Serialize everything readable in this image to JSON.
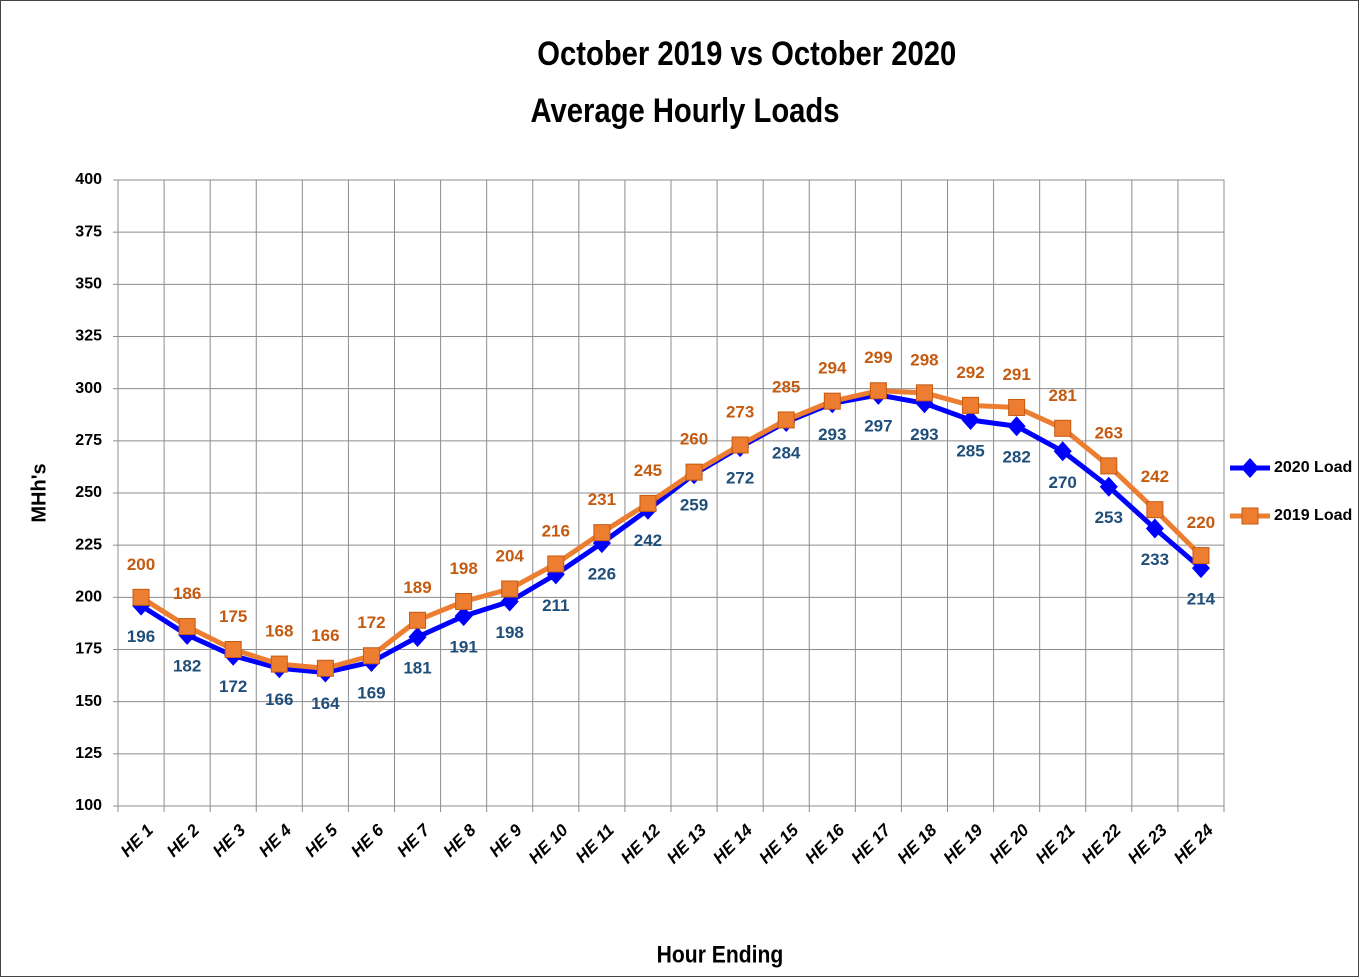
{
  "chart_data": {
    "type": "line",
    "title": [
      "October 2019 vs October 2020",
      "Average Hourly Loads"
    ],
    "x_label": "Hour Ending",
    "y_label": "MHh's",
    "categories": [
      "HE 1",
      "HE 2",
      "HE 3",
      "HE 4",
      "HE 5",
      "HE 6",
      "HE 7",
      "HE 8",
      "HE 9",
      "HE 10",
      "HE 11",
      "HE 12",
      "HE 13",
      "HE 14",
      "HE 15",
      "HE 16",
      "HE 17",
      "HE 18",
      "HE 19",
      "HE 20",
      "HE 21",
      "HE 22",
      "HE 23",
      "HE 24"
    ],
    "series": [
      {
        "name": "2020 Load",
        "color": "#0000ff",
        "marker": "diamond",
        "label_color": "#1f4e79",
        "label_position": "below",
        "values": [
          196,
          182,
          172,
          166,
          164,
          169,
          181,
          191,
          198,
          211,
          226,
          242,
          259,
          272,
          284,
          293,
          297,
          293,
          285,
          282,
          270,
          253,
          233,
          214
        ]
      },
      {
        "name": "2019 Load",
        "color": "#ed7d31",
        "marker": "square",
        "label_color": "#c55a11",
        "label_position": "above",
        "values": [
          200,
          186,
          175,
          168,
          166,
          172,
          189,
          198,
          204,
          216,
          231,
          245,
          260,
          273,
          285,
          294,
          299,
          298,
          292,
          291,
          281,
          263,
          242,
          220
        ]
      }
    ],
    "ylim": [
      100,
      400
    ],
    "yticks": [
      100,
      125,
      150,
      175,
      200,
      225,
      250,
      275,
      300,
      325,
      350,
      375,
      400
    ],
    "grid": true,
    "legend": "right"
  }
}
